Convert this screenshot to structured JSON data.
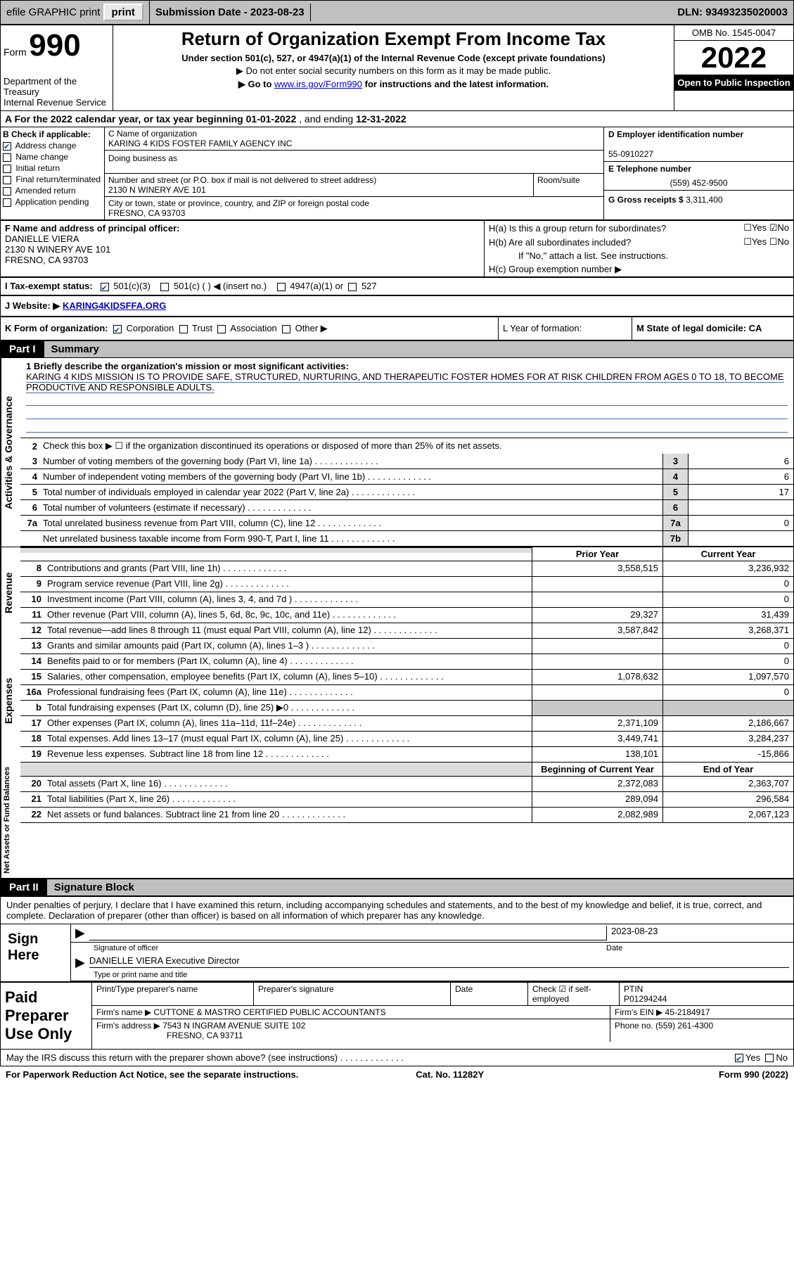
{
  "topbar": {
    "efile": "efile GRAPHIC print",
    "subdate_label": "Submission Date - ",
    "subdate": "2023-08-23",
    "dln_label": "DLN: ",
    "dln": "93493235020003"
  },
  "header": {
    "form_label": "Form",
    "form_num": "990",
    "dept": "Department of the Treasury\nInternal Revenue Service",
    "title": "Return of Organization Exempt From Income Tax",
    "sub1": "Under section 501(c), 527, or 4947(a)(1) of the Internal Revenue Code (except private foundations)",
    "sub2": "▶ Do not enter social security numbers on this form as it may be made public.",
    "sub3_pre": "▶ Go to ",
    "sub3_link": "www.irs.gov/Form990",
    "sub3_post": " for instructions and the latest information.",
    "omb": "OMB No. 1545-0047",
    "year": "2022",
    "open": "Open to Public Inspection"
  },
  "periodA": {
    "text_a": "A For the 2022 calendar year, or tax year beginning ",
    "begin": "01-01-2022",
    "mid": " , and ending ",
    "end": "12-31-2022"
  },
  "B": {
    "label": "B Check if applicable:",
    "opts": [
      "Address change",
      "Name change",
      "Initial return",
      "Final return/terminated",
      "Amended return",
      "Application pending"
    ],
    "checked": [
      true,
      false,
      false,
      false,
      false,
      false
    ]
  },
  "C": {
    "name_label": "C Name of organization",
    "name": "KARING 4 KIDS FOSTER FAMILY AGENCY INC",
    "dba": "Doing business as",
    "street_label": "Number and street (or P.O. box if mail is not delivered to street address)",
    "room_label": "Room/suite",
    "street": "2130 N WINERY AVE 101",
    "city_label": "City or town, state or province, country, and ZIP or foreign postal code",
    "city": "FRESNO, CA  93703"
  },
  "D": {
    "ein_label": "D Employer identification number",
    "ein": "55-0910227",
    "phone_label": "E Telephone number",
    "phone": "(559) 452-9500",
    "gross_label": "G Gross receipts $ ",
    "gross": "3,311,400"
  },
  "F": {
    "label": "F  Name and address of principal officer:",
    "name": "DANIELLE VIERA",
    "addr1": "2130 N WINERY AVE 101",
    "addr2": "FRESNO, CA  93703"
  },
  "H": {
    "a": "H(a)  Is this a group return for subordinates?",
    "a_yes": "Yes",
    "a_no": "No",
    "b": "H(b)  Are all subordinates included?",
    "b_note": "If \"No,\" attach a list. See instructions.",
    "c": "H(c)  Group exemption number ▶"
  },
  "I": {
    "label": "I   Tax-exempt status:",
    "o1": "501(c)(3)",
    "o2": "501(c) (  ) ◀ (insert no.)",
    "o3": "4947(a)(1) or",
    "o4": "527"
  },
  "J": {
    "label": "J   Website: ▶ ",
    "value": "KARING4KIDSFFA.ORG"
  },
  "K": {
    "label": "K Form of organization:",
    "o1": "Corporation",
    "o2": "Trust",
    "o3": "Association",
    "o4": "Other ▶",
    "L": "L Year of formation:",
    "M": "M State of legal domicile: CA"
  },
  "partI": {
    "part": "Part I",
    "title": "Summary"
  },
  "mission": {
    "label": "1   Briefly describe the organization's mission or most significant activities:",
    "text": "KARING 4 KIDS MISSION IS TO PROVIDE SAFE, STRUCTURED, NURTURING, AND THERAPEUTIC FOSTER HOMES FOR AT RISK CHILDREN FROM AGES 0 TO 18, TO BECOME PRODUCTIVE AND RESPONSIBLE ADULTS."
  },
  "gov": {
    "vlabel": "Activities & Governance",
    "l2": "Check this box ▶ ☐  if the organization discontinued its operations or disposed of more than 25% of its net assets.",
    "rows": [
      {
        "n": "3",
        "t": "Number of voting members of the governing body (Part VI, line 1a)",
        "b": "3",
        "v": "6"
      },
      {
        "n": "4",
        "t": "Number of independent voting members of the governing body (Part VI, line 1b)",
        "b": "4",
        "v": "6"
      },
      {
        "n": "5",
        "t": "Total number of individuals employed in calendar year 2022 (Part V, line 2a)",
        "b": "5",
        "v": "17"
      },
      {
        "n": "6",
        "t": "Total number of volunteers (estimate if necessary)",
        "b": "6",
        "v": ""
      },
      {
        "n": "7a",
        "t": "Total unrelated business revenue from Part VIII, column (C), line 12",
        "b": "7a",
        "v": "0"
      },
      {
        "n": "",
        "t": "Net unrelated business taxable income from Form 990-T, Part I, line 11",
        "b": "7b",
        "v": ""
      }
    ]
  },
  "colhdr": {
    "py": "Prior Year",
    "cy": "Current Year"
  },
  "rev": {
    "vlabel": "Revenue",
    "rows": [
      {
        "n": "8",
        "t": "Contributions and grants (Part VIII, line 1h)",
        "py": "3,558,515",
        "cy": "3,236,932"
      },
      {
        "n": "9",
        "t": "Program service revenue (Part VIII, line 2g)",
        "py": "",
        "cy": "0"
      },
      {
        "n": "10",
        "t": "Investment income (Part VIII, column (A), lines 3, 4, and 7d )",
        "py": "",
        "cy": "0"
      },
      {
        "n": "11",
        "t": "Other revenue (Part VIII, column (A), lines 5, 6d, 8c, 9c, 10c, and 11e)",
        "py": "29,327",
        "cy": "31,439"
      },
      {
        "n": "12",
        "t": "Total revenue—add lines 8 through 11 (must equal Part VIII, column (A), line 12)",
        "py": "3,587,842",
        "cy": "3,268,371"
      }
    ]
  },
  "exp": {
    "vlabel": "Expenses",
    "rows": [
      {
        "n": "13",
        "t": "Grants and similar amounts paid (Part IX, column (A), lines 1–3 )",
        "py": "",
        "cy": "0"
      },
      {
        "n": "14",
        "t": "Benefits paid to or for members (Part IX, column (A), line 4)",
        "py": "",
        "cy": "0"
      },
      {
        "n": "15",
        "t": "Salaries, other compensation, employee benefits (Part IX, column (A), lines 5–10)",
        "py": "1,078,632",
        "cy": "1,097,570"
      },
      {
        "n": "16a",
        "t": "Professional fundraising fees (Part IX, column (A), line 11e)",
        "py": "",
        "cy": "0"
      },
      {
        "n": "b",
        "t": "Total fundraising expenses (Part IX, column (D), line 25) ▶0",
        "py": "",
        "cy": "",
        "shade": true
      },
      {
        "n": "17",
        "t": "Other expenses (Part IX, column (A), lines 11a–11d, 11f–24e)",
        "py": "2,371,109",
        "cy": "2,186,667"
      },
      {
        "n": "18",
        "t": "Total expenses. Add lines 13–17 (must equal Part IX, column (A), line 25)",
        "py": "3,449,741",
        "cy": "3,284,237"
      },
      {
        "n": "19",
        "t": "Revenue less expenses. Subtract line 18 from line 12",
        "py": "138,101",
        "cy": "-15,866"
      }
    ]
  },
  "net": {
    "vlabel": "Net Assets or Fund Balances",
    "hdr_py": "Beginning of Current Year",
    "hdr_cy": "End of Year",
    "rows": [
      {
        "n": "20",
        "t": "Total assets (Part X, line 16)",
        "py": "2,372,083",
        "cy": "2,363,707"
      },
      {
        "n": "21",
        "t": "Total liabilities (Part X, line 26)",
        "py": "289,094",
        "cy": "296,584"
      },
      {
        "n": "22",
        "t": "Net assets or fund balances. Subtract line 21 from line 20",
        "py": "2,082,989",
        "cy": "2,067,123"
      }
    ]
  },
  "partII": {
    "part": "Part II",
    "title": "Signature Block"
  },
  "sig": {
    "penalty": "Under penalties of perjury, I declare that I have examined this return, including accompanying schedules and statements, and to the best of my knowledge and belief, it is true, correct, and complete. Declaration of preparer (other than officer) is based on all information of which preparer has any knowledge.",
    "sign_here": "Sign Here",
    "sig_of": "Signature of officer",
    "date": "2023-08-23",
    "date_lab": "Date",
    "name": "DANIELLE VIERA  Executive Director",
    "name_lab": "Type or print name and title",
    "paid": "Paid Preparer Use Only",
    "hdr": [
      "Print/Type preparer's name",
      "Preparer's signature",
      "Date",
      "Check ☑ if self-employed",
      "PTIN"
    ],
    "ptin": "P01294244",
    "firm_name_lab": "Firm's name    ▶ ",
    "firm_name": "CUTTONE & MASTRO CERTIFIED PUBLIC ACCOUNTANTS",
    "firm_ein_lab": "Firm's EIN ▶ ",
    "firm_ein": "45-2184917",
    "firm_addr_lab": "Firm's address ▶ ",
    "firm_addr": "7543 N INGRAM AVENUE SUITE 102",
    "firm_city": "FRESNO, CA  93711",
    "firm_phone_lab": "Phone no. ",
    "firm_phone": "(559) 261-4300"
  },
  "may": {
    "text": "May the IRS discuss this return with the preparer shown above? (see instructions)",
    "yes": "Yes",
    "no": "No"
  },
  "footer": {
    "l": "For Paperwork Reduction Act Notice, see the separate instructions.",
    "m": "Cat. No. 11282Y",
    "r": "Form 990 (2022)"
  }
}
